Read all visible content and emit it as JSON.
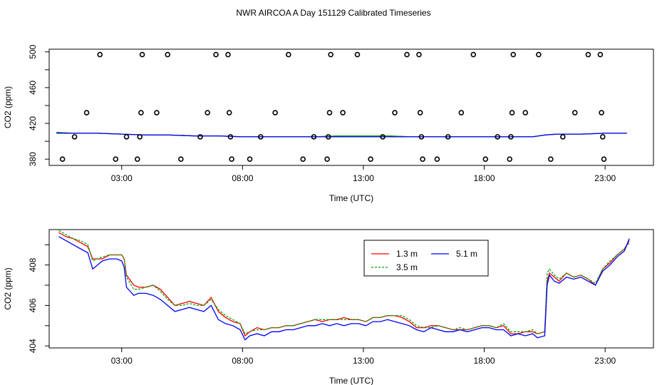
{
  "figure_title": "NWR AIRCOA A  Day 151129  Calibrated Timeseries",
  "chart_data": [
    {
      "id": "panel-top",
      "type": "scatter",
      "xlabel": "Time (UTC)",
      "ylabel": "CO2 (ppm)",
      "xlim": [
        0,
        25
      ],
      "ylim": [
        373,
        503
      ],
      "xticks": [
        3,
        8,
        13,
        18,
        23
      ],
      "xtick_labels": [
        "03:00",
        "08:00",
        "13:00",
        "18:00",
        "23:00"
      ],
      "yticks": [
        380,
        420,
        460,
        500
      ],
      "ytick_labels": [
        "380",
        "420",
        "460",
        "500"
      ],
      "ytick_minor": [
        400,
        440,
        480
      ],
      "points": [
        [
          0.55,
          380
        ],
        [
          1.05,
          405
        ],
        [
          1.55,
          432
        ],
        [
          2.1,
          497
        ],
        [
          2.75,
          380
        ],
        [
          3.2,
          405
        ],
        [
          3.65,
          380
        ],
        [
          3.75,
          405
        ],
        [
          3.8,
          432
        ],
        [
          3.85,
          497
        ],
        [
          4.45,
          432
        ],
        [
          4.9,
          497
        ],
        [
          5.45,
          380
        ],
        [
          6.25,
          405
        ],
        [
          6.55,
          432
        ],
        [
          6.9,
          497
        ],
        [
          7.4,
          497
        ],
        [
          7.45,
          432
        ],
        [
          7.5,
          405
        ],
        [
          7.55,
          380
        ],
        [
          8.3,
          380
        ],
        [
          8.75,
          405
        ],
        [
          9.35,
          432
        ],
        [
          9.9,
          497
        ],
        [
          10.5,
          380
        ],
        [
          10.95,
          405
        ],
        [
          11.5,
          380
        ],
        [
          11.55,
          405
        ],
        [
          11.6,
          432
        ],
        [
          11.65,
          497
        ],
        [
          12.15,
          432
        ],
        [
          12.75,
          497
        ],
        [
          13.3,
          380
        ],
        [
          13.8,
          405
        ],
        [
          14.3,
          432
        ],
        [
          14.8,
          497
        ],
        [
          15.3,
          497
        ],
        [
          15.35,
          432
        ],
        [
          15.4,
          405
        ],
        [
          15.45,
          380
        ],
        [
          16.05,
          380
        ],
        [
          16.5,
          405
        ],
        [
          17.05,
          432
        ],
        [
          17.55,
          497
        ],
        [
          18.05,
          380
        ],
        [
          18.55,
          405
        ],
        [
          19.05,
          380
        ],
        [
          19.1,
          405
        ],
        [
          19.15,
          432
        ],
        [
          19.2,
          497
        ],
        [
          19.7,
          432
        ],
        [
          20.25,
          497
        ],
        [
          20.75,
          380
        ],
        [
          21.25,
          405
        ],
        [
          21.75,
          432
        ],
        [
          22.3,
          497
        ],
        [
          22.8,
          497
        ],
        [
          22.85,
          432
        ],
        [
          22.9,
          405
        ],
        [
          22.95,
          380
        ]
      ],
      "series": [
        {
          "name": "1.3 m",
          "color": "#ff0000",
          "x": [
            0.3,
            1,
            2,
            3,
            4,
            5,
            6,
            7,
            8,
            9,
            10,
            11,
            12,
            13,
            14,
            15,
            16,
            17,
            18,
            19,
            20,
            20.5,
            21,
            22,
            23,
            23.9
          ],
          "values": [
            410,
            409,
            409,
            408,
            407,
            407,
            406,
            406,
            405,
            405,
            405,
            405,
            406,
            406,
            406,
            405,
            405,
            405,
            405,
            405,
            405,
            407,
            408,
            408,
            409,
            409
          ]
        },
        {
          "name": "3.5 m",
          "color": "#00aa00",
          "x": [
            0.3,
            1,
            2,
            3,
            4,
            5,
            6,
            7,
            8,
            9,
            10,
            11,
            12,
            13,
            14,
            15,
            16,
            17,
            18,
            19,
            20,
            20.5,
            21,
            22,
            23,
            23.9
          ],
          "values": [
            410,
            409,
            409,
            408,
            407,
            407,
            406,
            406,
            405,
            405,
            405,
            405,
            406,
            406,
            406,
            405,
            405,
            405,
            405,
            405,
            405,
            407,
            408,
            408,
            409,
            409
          ]
        },
        {
          "name": "5.1 m",
          "color": "#0000ff",
          "x": [
            0.3,
            1,
            2,
            3,
            4,
            5,
            6,
            7,
            8,
            9,
            10,
            11,
            12,
            13,
            14,
            15,
            16,
            17,
            18,
            19,
            20,
            20.5,
            21,
            22,
            23,
            23.9
          ],
          "values": [
            409,
            409,
            409,
            408,
            407,
            407,
            406,
            406,
            405,
            405,
            405,
            405,
            405,
            405,
            405,
            405,
            405,
            405,
            405,
            405,
            405,
            407,
            408,
            408,
            409,
            409
          ]
        }
      ]
    },
    {
      "id": "panel-bottom",
      "type": "line",
      "xlabel": "Time (UTC)",
      "ylabel": "CO2 (ppm)",
      "xlim": [
        0,
        25
      ],
      "ylim": [
        403.9,
        409.75
      ],
      "xticks": [
        3,
        8,
        13,
        18,
        23
      ],
      "xtick_labels": [
        "03:00",
        "08:00",
        "13:00",
        "18:00",
        "23:00"
      ],
      "yticks": [
        404,
        406,
        408
      ],
      "ytick_labels": [
        "404",
        "406",
        "408"
      ],
      "ytick_minor": [
        405,
        407,
        409
      ],
      "legend": {
        "position": "top-center",
        "entries": [
          "1.3 m",
          "5.1 m",
          "3.5 m"
        ]
      },
      "series": [
        {
          "name": "1.3 m",
          "color": "#ff0000",
          "dash": "",
          "x": [
            0.4,
            0.7,
            1.0,
            1.3,
            1.6,
            1.8,
            2.0,
            2.2,
            2.5,
            2.8,
            3.0,
            3.1,
            3.2,
            3.5,
            3.7,
            4.0,
            4.3,
            4.6,
            4.9,
            5.2,
            5.5,
            5.8,
            6.1,
            6.4,
            6.7,
            7.0,
            7.3,
            7.6,
            7.9,
            8.1,
            8.3,
            8.6,
            8.9,
            9.2,
            9.5,
            9.8,
            10.1,
            10.4,
            10.7,
            11.0,
            11.3,
            11.6,
            11.9,
            12.2,
            12.5,
            12.8,
            13.1,
            13.4,
            13.7,
            14.0,
            14.3,
            14.6,
            14.9,
            15.2,
            15.5,
            15.8,
            16.1,
            16.4,
            16.7,
            17.0,
            17.3,
            17.6,
            17.9,
            18.2,
            18.5,
            18.8,
            19.1,
            19.4,
            19.7,
            20.0,
            20.2,
            20.5,
            20.6,
            20.7,
            20.9,
            21.1,
            21.4,
            21.7,
            22.0,
            22.3,
            22.6,
            22.9,
            23.2,
            23.5,
            23.8,
            24.0
          ],
          "values": [
            409.6,
            409.4,
            409.3,
            409.1,
            408.9,
            408.3,
            408.3,
            408.3,
            408.5,
            408.5,
            408.5,
            408.3,
            407.5,
            407.0,
            406.9,
            406.9,
            407.0,
            406.8,
            406.4,
            406.0,
            406.1,
            406.2,
            406.1,
            406.0,
            406.4,
            405.7,
            405.4,
            405.2,
            405.1,
            404.5,
            404.7,
            404.9,
            404.8,
            404.9,
            404.9,
            405.0,
            405.0,
            405.1,
            405.2,
            405.3,
            405.2,
            405.3,
            405.3,
            405.4,
            405.3,
            405.3,
            405.2,
            405.4,
            405.4,
            405.5,
            405.5,
            405.4,
            405.2,
            404.9,
            404.9,
            405.0,
            405.0,
            404.9,
            404.8,
            404.8,
            404.8,
            404.9,
            405.0,
            405.0,
            404.9,
            405.0,
            404.6,
            404.6,
            404.7,
            404.7,
            404.6,
            404.7,
            407.2,
            407.6,
            407.4,
            407.2,
            407.6,
            407.4,
            407.5,
            407.3,
            407.0,
            407.8,
            408.1,
            408.5,
            408.8,
            409.2
          ]
        },
        {
          "name": "3.5 m",
          "color": "#00aa00",
          "dash": "3,2",
          "x": [
            0.4,
            0.7,
            1.0,
            1.3,
            1.6,
            1.8,
            2.0,
            2.2,
            2.5,
            2.8,
            3.0,
            3.1,
            3.2,
            3.5,
            3.7,
            4.0,
            4.3,
            4.6,
            4.9,
            5.2,
            5.5,
            5.8,
            6.1,
            6.4,
            6.7,
            7.0,
            7.3,
            7.6,
            7.9,
            8.1,
            8.3,
            8.6,
            8.9,
            9.2,
            9.5,
            9.8,
            10.1,
            10.4,
            10.7,
            11.0,
            11.3,
            11.6,
            11.9,
            12.2,
            12.5,
            12.8,
            13.1,
            13.4,
            13.7,
            14.0,
            14.3,
            14.6,
            14.9,
            15.2,
            15.5,
            15.8,
            16.1,
            16.4,
            16.7,
            17.0,
            17.3,
            17.6,
            17.9,
            18.2,
            18.5,
            18.8,
            19.1,
            19.4,
            19.7,
            20.0,
            20.2,
            20.5,
            20.6,
            20.7,
            20.9,
            21.1,
            21.4,
            21.7,
            22.0,
            22.3,
            22.6,
            22.9,
            23.2,
            23.5,
            23.8,
            24.0
          ],
          "values": [
            409.7,
            409.5,
            409.3,
            409.2,
            409.0,
            408.2,
            408.3,
            408.4,
            408.5,
            408.5,
            408.5,
            408.3,
            407.4,
            406.8,
            406.8,
            406.9,
            407.0,
            406.7,
            406.3,
            406.0,
            406.0,
            406.1,
            406.0,
            406.0,
            406.3,
            405.8,
            405.5,
            405.3,
            405.1,
            404.6,
            404.7,
            404.8,
            404.8,
            404.9,
            404.9,
            405.0,
            405.0,
            405.1,
            405.2,
            405.3,
            405.3,
            405.3,
            405.3,
            405.3,
            405.3,
            405.3,
            405.2,
            405.4,
            405.4,
            405.5,
            405.5,
            405.5,
            405.3,
            405.0,
            404.9,
            404.9,
            405.0,
            404.9,
            404.8,
            404.9,
            404.8,
            404.9,
            405.0,
            405.0,
            404.9,
            405.1,
            404.7,
            404.7,
            404.7,
            404.8,
            404.6,
            404.7,
            407.6,
            407.8,
            407.5,
            407.3,
            407.6,
            407.4,
            407.5,
            407.3,
            407.1,
            407.8,
            408.2,
            408.5,
            408.8,
            409.1
          ]
        },
        {
          "name": "5.1 m",
          "color": "#0000ff",
          "dash": "",
          "x": [
            0.4,
            0.7,
            1.0,
            1.3,
            1.6,
            1.8,
            2.0,
            2.2,
            2.5,
            2.8,
            3.0,
            3.1,
            3.2,
            3.5,
            3.7,
            4.0,
            4.3,
            4.6,
            4.9,
            5.2,
            5.5,
            5.8,
            6.1,
            6.4,
            6.7,
            7.0,
            7.3,
            7.6,
            7.9,
            8.1,
            8.3,
            8.6,
            8.9,
            9.2,
            9.5,
            9.8,
            10.1,
            10.4,
            10.7,
            11.0,
            11.3,
            11.6,
            11.9,
            12.2,
            12.5,
            12.8,
            13.1,
            13.4,
            13.7,
            14.0,
            14.3,
            14.6,
            14.9,
            15.2,
            15.5,
            15.8,
            16.1,
            16.4,
            16.7,
            17.0,
            17.3,
            17.6,
            17.9,
            18.2,
            18.5,
            18.8,
            19.1,
            19.4,
            19.7,
            20.0,
            20.2,
            20.5,
            20.6,
            20.7,
            20.9,
            21.1,
            21.4,
            21.7,
            22.0,
            22.3,
            22.6,
            22.9,
            23.2,
            23.5,
            23.8,
            24.0
          ],
          "values": [
            409.4,
            409.2,
            409.0,
            408.8,
            408.6,
            407.8,
            408.0,
            408.2,
            408.3,
            408.3,
            408.2,
            407.9,
            406.9,
            406.5,
            406.6,
            406.6,
            406.5,
            406.3,
            406.0,
            405.7,
            405.8,
            405.9,
            405.8,
            405.7,
            406.0,
            405.3,
            405.1,
            405.0,
            404.8,
            404.3,
            404.5,
            404.6,
            404.5,
            404.7,
            404.7,
            404.8,
            404.8,
            404.9,
            405.0,
            405.0,
            405.1,
            405.0,
            405.1,
            405.0,
            405.1,
            405.1,
            405.0,
            405.2,
            405.2,
            405.3,
            405.2,
            405.1,
            405.0,
            404.8,
            404.7,
            404.9,
            404.8,
            404.7,
            404.7,
            404.8,
            404.7,
            404.8,
            404.9,
            404.9,
            404.8,
            404.8,
            404.5,
            404.6,
            404.5,
            404.6,
            404.4,
            404.5,
            407.0,
            407.5,
            407.2,
            407.1,
            407.4,
            407.3,
            407.4,
            407.2,
            407.0,
            407.7,
            408.0,
            408.4,
            408.7,
            409.3
          ]
        }
      ]
    }
  ]
}
